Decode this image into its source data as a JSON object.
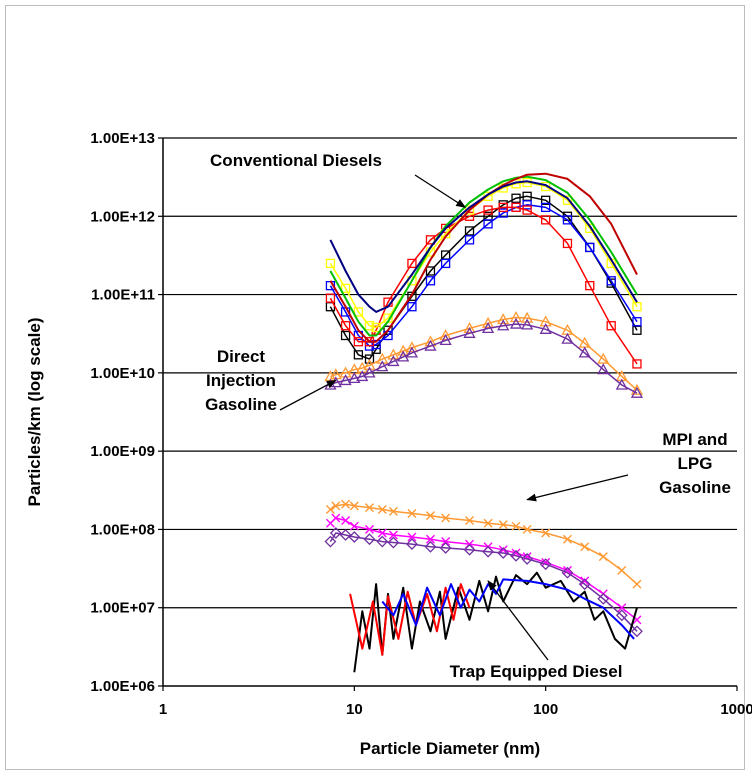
{
  "chart_data": {
    "type": "scatter",
    "title": "",
    "xlabel": "Particle Diameter (nm)",
    "ylabel": "Particles/km (log scale)",
    "x_scale": "log",
    "y_scale": "log",
    "xlim": [
      1,
      1000
    ],
    "ylim": [
      1000000,
      10000000000000
    ],
    "x_ticks": [
      1,
      10,
      100,
      1000
    ],
    "x_tick_labels": [
      "1",
      "10",
      "100",
      "1000"
    ],
    "y_ticks": [
      1000000,
      10000000,
      100000000,
      1000000000,
      10000000000,
      100000000000,
      1000000000000,
      10000000000000
    ],
    "y_tick_labels": [
      "1.00E+06",
      "1.00E+07",
      "1.00E+08",
      "1.00E+09",
      "1.00E+10",
      "1.00E+11",
      "1.00E+12",
      "1.00E+13"
    ],
    "grid": "horizontal major lines",
    "legend": "none",
    "annotations": [
      {
        "lines": [
          "Conventional Diesels"
        ],
        "points_to": [
          38,
          1300000000000
        ]
      },
      {
        "lines": [
          "Direct",
          "Injection",
          "Gasoline"
        ],
        "points_to": [
          8,
          8000000000
        ]
      },
      {
        "lines": [
          "MPI and",
          "LPG",
          "Gasoline"
        ],
        "points_to": [
          80,
          240000000
        ]
      },
      {
        "lines": [
          "Trap Equipped Diesel"
        ],
        "points_to": [
          50,
          22000000
        ]
      }
    ],
    "groups": [
      {
        "annotation": "Conventional Diesels",
        "series": [
          {
            "color": "#000000",
            "marker": "square",
            "x": [
              7.5,
              9,
              10.5,
              12,
              13,
              15,
              20,
              25,
              30,
              40,
              50,
              60,
              70,
              80,
              100,
              130,
              170,
              220,
              300
            ],
            "y": [
              70000000000,
              30000000000,
              17000000000,
              15000000000,
              20000000000,
              35000000000,
              95000000000,
              200000000000,
              320000000000,
              650000000000,
              1000000000000,
              1400000000000,
              1700000000000,
              1800000000000,
              1600000000000,
              1000000000000,
              400000000000,
              140000000000,
              35000000000
            ]
          },
          {
            "color": "#0000ff",
            "marker": "square",
            "x": [
              7.5,
              9,
              10.5,
              12,
              13,
              15,
              20,
              25,
              30,
              40,
              50,
              60,
              70,
              80,
              100,
              130,
              170,
              220,
              300
            ],
            "y": [
              130000000000,
              60000000000,
              30000000000,
              22000000000,
              23000000000,
              30000000000,
              70000000000,
              150000000000,
              250000000000,
              500000000000,
              800000000000,
              1100000000000,
              1300000000000,
              1400000000000,
              1300000000000,
              900000000000,
              400000000000,
              150000000000,
              45000000000
            ]
          },
          {
            "color": "#ff0000",
            "marker": "square",
            "x": [
              7.5,
              9,
              10.5,
              12,
              13,
              15,
              20,
              25,
              30,
              40,
              50,
              60,
              70,
              80,
              100,
              130,
              170,
              220,
              300
            ],
            "y": [
              90000000000,
              40000000000,
              25000000000,
              25000000000,
              35000000000,
              80000000000,
              250000000000,
              500000000000,
              700000000000,
              1000000000000,
              1200000000000,
              1300000000000,
              1300000000000,
              1200000000000,
              900000000000,
              450000000000,
              130000000000,
              40000000000,
              13000000000
            ]
          },
          {
            "color": "#ffff00",
            "marker": "square",
            "x": [
              7.5,
              9,
              10.5,
              12,
              13,
              15,
              20,
              25,
              30,
              40,
              50,
              60,
              70,
              80,
              100,
              130,
              170,
              220,
              300
            ],
            "y": [
              250000000000,
              120000000000,
              60000000000,
              40000000000,
              38000000000,
              50000000000,
              150000000000,
              350000000000,
              600000000000,
              1200000000000,
              1800000000000,
              2300000000000,
              2600000000000,
              2700000000000,
              2400000000000,
              1600000000000,
              700000000000,
              250000000000,
              70000000000
            ]
          },
          {
            "color": "#00c000",
            "marker": "none",
            "x": [
              7.5,
              9,
              10.5,
              12,
              13,
              15,
              20,
              25,
              30,
              40,
              50,
              60,
              70,
              80,
              100,
              130,
              170,
              220,
              300
            ],
            "y": [
              200000000000,
              90000000000,
              45000000000,
              30000000000,
              30000000000,
              45000000000,
              150000000000,
              400000000000,
              750000000000,
              1500000000000,
              2200000000000,
              2800000000000,
              3100000000000,
              3200000000000,
              2900000000000,
              2000000000000,
              900000000000,
              350000000000,
              100000000000
            ]
          },
          {
            "color": "#c00000",
            "marker": "none",
            "x": [
              7.5,
              9,
              10.5,
              12,
              13,
              15,
              20,
              25,
              30,
              40,
              50,
              60,
              70,
              80,
              100,
              130,
              170,
              220,
              300
            ],
            "y": [
              150000000000,
              70000000000,
              35000000000,
              25000000000,
              25000000000,
              35000000000,
              100000000000,
              280000000000,
              550000000000,
              1200000000000,
              1900000000000,
              2500000000000,
              3000000000000,
              3400000000000,
              3500000000000,
              3000000000000,
              1800000000000,
              800000000000,
              180000000000
            ]
          },
          {
            "color": "#000080",
            "marker": "none",
            "x": [
              7.5,
              9,
              10.5,
              12,
              13,
              15,
              20,
              25,
              30,
              40,
              50,
              60,
              70,
              80,
              100,
              130,
              170,
              220,
              300
            ],
            "y": [
              500000000000,
              200000000000,
              100000000000,
              70000000000,
              60000000000,
              70000000000,
              180000000000,
              400000000000,
              700000000000,
              1300000000000,
              1900000000000,
              2400000000000,
              2700000000000,
              2800000000000,
              2500000000000,
              1700000000000,
              750000000000,
              280000000000,
              80000000000
            ]
          }
        ]
      },
      {
        "annotation": "Direct Injection Gasoline",
        "series": [
          {
            "color": "#ff9933",
            "marker": "triangle",
            "x": [
              7.5,
              8,
              9,
              10,
              11,
              12,
              14,
              16,
              18,
              20,
              25,
              30,
              40,
              50,
              60,
              70,
              80,
              100,
              130,
              160,
              200,
              250,
              300
            ],
            "y": [
              9000000000,
              9500000000,
              10000000000,
              11000000000,
              11500000000,
              12500000000,
              15000000000,
              17000000000,
              19000000000,
              21000000000,
              25000000000,
              30000000000,
              37000000000,
              43000000000,
              48000000000,
              51000000000,
              50000000000,
              45000000000,
              35000000000,
              24000000000,
              15000000000,
              9000000000,
              6000000000
            ]
          },
          {
            "color": "#7030a0",
            "marker": "triangle",
            "x": [
              7.5,
              8,
              9,
              10,
              11,
              12,
              14,
              16,
              18,
              20,
              25,
              30,
              40,
              50,
              60,
              70,
              80,
              100,
              130,
              160,
              200,
              250,
              300
            ],
            "y": [
              7000000000,
              7500000000,
              8000000000,
              8500000000,
              9000000000,
              10000000000,
              12000000000,
              14000000000,
              16000000000,
              18000000000,
              22000000000,
              26000000000,
              32000000000,
              37000000000,
              40000000000,
              42000000000,
              41000000000,
              36000000000,
              27000000000,
              18000000000,
              11000000000,
              7000000000,
              5500000000
            ]
          }
        ]
      },
      {
        "annotation": "MPI and LPG Gasoline",
        "series": [
          {
            "color": "#ff9933",
            "marker": "cross",
            "x": [
              7.5,
              8,
              9,
              10,
              12,
              14,
              16,
              20,
              25,
              30,
              40,
              50,
              60,
              70,
              80,
              100,
              130,
              160,
              200,
              250,
              300
            ],
            "y": [
              180000000,
              200000000,
              210000000,
              200000000,
              190000000,
              180000000,
              170000000,
              160000000,
              150000000,
              140000000,
              130000000,
              120000000,
              115000000,
              110000000,
              100000000,
              90000000,
              75000000,
              60000000,
              45000000,
              30000000,
              20000000
            ]
          },
          {
            "color": "#ff00ff",
            "marker": "cross",
            "x": [
              7.5,
              8,
              9,
              10,
              12,
              14,
              16,
              20,
              25,
              30,
              40,
              50,
              60,
              70,
              80,
              100,
              130,
              160,
              200,
              250,
              300
            ],
            "y": [
              120000000,
              140000000,
              130000000,
              110000000,
              100000000,
              90000000,
              85000000,
              80000000,
              75000000,
              70000000,
              65000000,
              60000000,
              55000000,
              50000000,
              45000000,
              38000000,
              30000000,
              22000000,
              15000000,
              10000000,
              7000000
            ]
          },
          {
            "color": "#7030a0",
            "marker": "diamond",
            "x": [
              7.5,
              8,
              9,
              10,
              12,
              14,
              16,
              20,
              25,
              30,
              40,
              50,
              60,
              70,
              80,
              100,
              130,
              160,
              200,
              250,
              300
            ],
            "y": [
              70000000,
              90000000,
              85000000,
              80000000,
              75000000,
              70000000,
              68000000,
              65000000,
              60000000,
              58000000,
              55000000,
              52000000,
              50000000,
              46000000,
              42000000,
              36000000,
              28000000,
              20000000,
              13000000,
              8000000,
              5000000
            ]
          }
        ]
      },
      {
        "annotation": "Trap Equipped Diesel",
        "series": [
          {
            "color": "#000000",
            "marker": "none",
            "x": [
              10,
              11,
              12,
              13,
              14,
              15,
              16,
              18,
              20,
              22,
              25,
              28,
              30,
              35,
              40,
              45,
              50,
              55,
              60,
              70,
              80,
              90,
              100,
              120,
              140,
              160,
              180,
              200,
              230,
              260,
              300
            ],
            "y": [
              1500000,
              9000000,
              3000000,
              20000000,
              2500000,
              15000000,
              4000000,
              18000000,
              3000000,
              12000000,
              5000000,
              16000000,
              4000000,
              18000000,
              7000000,
              22000000,
              9000000,
              25000000,
              12000000,
              26000000,
              20000000,
              28000000,
              18000000,
              22000000,
              12000000,
              16000000,
              7000000,
              9000000,
              4000000,
              3000000,
              10000000
            ]
          },
          {
            "color": "#ff0000",
            "marker": "none",
            "x": [
              9.5,
              11,
              12.5,
              14,
              15,
              17,
              19,
              21,
              24,
              27,
              30,
              33,
              36,
              40
            ],
            "y": [
              15000000,
              3000000,
              12000000,
              2500000,
              14000000,
              4000000,
              16000000,
              6000000,
              15000000,
              5000000,
              18000000,
              7000000,
              20000000,
              10000000
            ]
          },
          {
            "color": "#0000ff",
            "marker": "none",
            "x": [
              14,
              16,
              18,
              21,
              24,
              28,
              32,
              36,
              40,
              45,
              50,
              55,
              60,
              80,
              100,
              130,
              160,
              200,
              250,
              290
            ],
            "y": [
              12000000,
              8000000,
              15000000,
              6000000,
              18000000,
              8000000,
              20000000,
              10000000,
              17000000,
              12000000,
              20000000,
              15000000,
              23000000,
              22000000,
              20000000,
              17000000,
              13000000,
              10000000,
              6000000,
              4000000
            ]
          }
        ]
      }
    ]
  }
}
